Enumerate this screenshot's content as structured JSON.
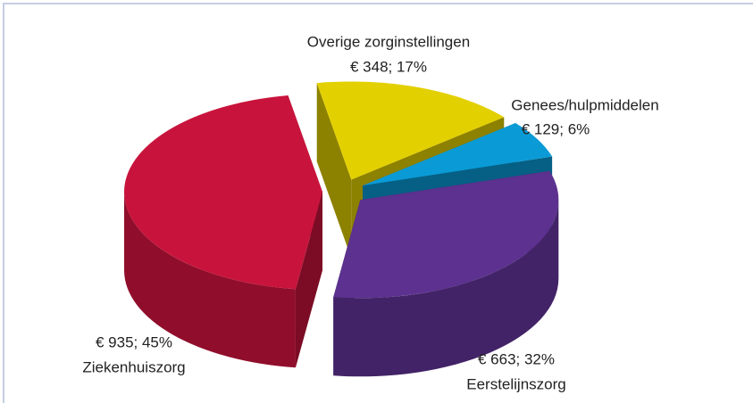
{
  "chart_data": {
    "type": "pie3d",
    "categories": [
      "Overige zorginstellingen",
      "Genees/hulpmiddelen",
      "Eerstelijnszorg",
      "Ziekenhuiszorg"
    ],
    "values": [
      348,
      129,
      663,
      935
    ],
    "value_labels": [
      "€ 348; 17%",
      "€ 129; 6%",
      "€ 663; 32%",
      "€ 935; 45%"
    ],
    "colors": [
      "#e3d000",
      "#0a9bd6",
      "#5c318f",
      "#c8143c"
    ]
  }
}
